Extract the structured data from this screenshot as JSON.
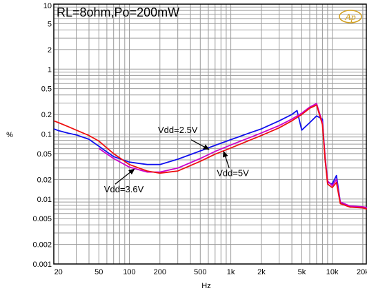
{
  "chart_data": {
    "type": "line",
    "title": "RL=8ohm,Po=200mW",
    "xlabel": "Hz",
    "ylabel": "%",
    "x_scale": "log",
    "y_scale": "log",
    "xlim": [
      18,
      22000
    ],
    "ylim": [
      0.001,
      10
    ],
    "x_ticks": [
      {
        "v": 20,
        "label": "20"
      },
      {
        "v": 50,
        "label": "50"
      },
      {
        "v": 100,
        "label": "100"
      },
      {
        "v": 200,
        "label": "200"
      },
      {
        "v": 500,
        "label": "500"
      },
      {
        "v": 1000,
        "label": "1k"
      },
      {
        "v": 2000,
        "label": "2k"
      },
      {
        "v": 5000,
        "label": "5k"
      },
      {
        "v": 10000,
        "label": "10k"
      },
      {
        "v": 20000,
        "label": "20k"
      }
    ],
    "y_ticks": [
      {
        "v": 10,
        "label": "10"
      },
      {
        "v": 5,
        "label": "5"
      },
      {
        "v": 2,
        "label": "2"
      },
      {
        "v": 1,
        "label": "1"
      },
      {
        "v": 0.5,
        "label": "0.5"
      },
      {
        "v": 0.2,
        "label": "0.2"
      },
      {
        "v": 0.1,
        "label": "0.1"
      },
      {
        "v": 0.05,
        "label": "0.05"
      },
      {
        "v": 0.02,
        "label": "0.02"
      },
      {
        "v": 0.01,
        "label": "0.01"
      },
      {
        "v": 0.005,
        "label": "0.005"
      },
      {
        "v": 0.002,
        "label": "0.002"
      },
      {
        "v": 0.001,
        "label": "0.001"
      }
    ],
    "grid": true,
    "series": [
      {
        "name": "Vdd=2.5V",
        "color": "#1010ee",
        "x": [
          18,
          20,
          25,
          30,
          40,
          50,
          70,
          100,
          150,
          200,
          300,
          500,
          700,
          1000,
          1500,
          2000,
          3000,
          4000,
          4500,
          5000,
          6000,
          7000,
          8000,
          8500,
          9000,
          10000,
          11000,
          12000,
          15000,
          20000,
          22000
        ],
        "y": [
          0.12,
          0.113,
          0.103,
          0.097,
          0.083,
          0.065,
          0.045,
          0.037,
          0.034,
          0.034,
          0.041,
          0.055,
          0.067,
          0.082,
          0.103,
          0.12,
          0.16,
          0.2,
          0.23,
          0.115,
          0.15,
          0.19,
          0.17,
          0.04,
          0.018,
          0.017,
          0.023,
          0.009,
          0.0075,
          0.0074,
          0.0072
        ]
      },
      {
        "name": "Vdd=3.6V",
        "color": "#cc00cc",
        "x": [
          50,
          70,
          100,
          150,
          200,
          300,
          500,
          700,
          1000,
          1500,
          2000,
          3000,
          4000,
          5000,
          6000,
          7000,
          8000,
          8500,
          9000,
          10000,
          11000,
          12000,
          15000,
          20000,
          22000
        ],
        "y": [
          0.06,
          0.042,
          0.031,
          0.026,
          0.026,
          0.03,
          0.042,
          0.054,
          0.068,
          0.087,
          0.104,
          0.135,
          0.17,
          0.21,
          0.26,
          0.295,
          0.15,
          0.045,
          0.019,
          0.016,
          0.02,
          0.009,
          0.0078,
          0.0076,
          0.0074
        ]
      },
      {
        "name": "Vdd=5V",
        "color": "#ee1010",
        "x": [
          18,
          20,
          25,
          30,
          40,
          50,
          70,
          100,
          150,
          200,
          300,
          500,
          700,
          1000,
          1500,
          2000,
          3000,
          4000,
          5000,
          6000,
          7000,
          8000,
          8500,
          9000,
          10000,
          11000,
          12000,
          15000,
          20000,
          22000
        ],
        "y": [
          0.16,
          0.15,
          0.13,
          0.115,
          0.095,
          0.078,
          0.05,
          0.034,
          0.027,
          0.025,
          0.027,
          0.038,
          0.049,
          0.061,
          0.079,
          0.095,
          0.125,
          0.16,
          0.2,
          0.25,
          0.28,
          0.14,
          0.04,
          0.017,
          0.015,
          0.018,
          0.0085,
          0.0075,
          0.0073,
          0.007
        ]
      }
    ],
    "annotations": [
      {
        "text": "Vdd=2.5V",
        "series": "Vdd=2.5V",
        "point": [
          610,
          0.058
        ]
      },
      {
        "text": "Vdd=3.6V",
        "series": "Vdd=3.6V",
        "point": [
          112,
          0.029
        ]
      },
      {
        "text": "Vdd=5V",
        "series": "Vdd=5V",
        "point": [
          850,
          0.054
        ]
      }
    ],
    "logo": "Ap"
  }
}
